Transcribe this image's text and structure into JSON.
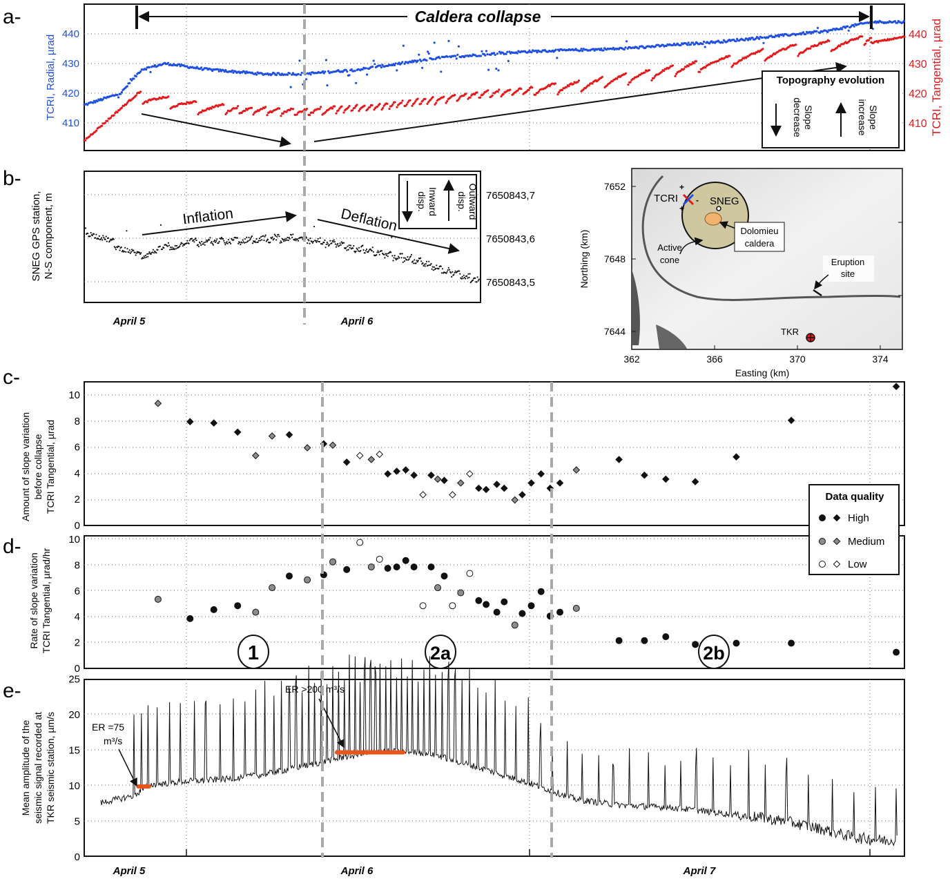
{
  "panel_labels": {
    "a": "a-",
    "b": "b-",
    "c": "c-",
    "d": "d-",
    "e": "e-"
  },
  "colors": {
    "tcri_radial": "#1f4fe0",
    "tcri_tangential": "#e31a1c",
    "black": "#111111",
    "medium_grey": "#8c8c8c",
    "orange": "#e8551a",
    "caldera_fill": "#cfc7a0",
    "dome_fill": "#f0b270",
    "dashed_line": "#a9a9a9"
  },
  "icons": {
    "data_quality_marker_circle": "circle-marker",
    "data_quality_marker_diamond": "diamond-marker",
    "tcri_station": "x-cross-icon",
    "tkr_station": "circled-plus-icon"
  },
  "panel_a": {
    "annotation": "Caldera collapse",
    "ylabel_left": "TCRI, Radial, µrad",
    "ylabel_right": "TCRI, Tangential, µrad",
    "yticks_left": [
      "440",
      "430",
      "420",
      "410"
    ],
    "yticks_right": [
      "440",
      "430",
      "420",
      "410"
    ],
    "legend": {
      "title": "Topography evolution",
      "slope_decrease": "Slope decrease",
      "slope_increase": "Slope increase"
    }
  },
  "panel_b": {
    "ylabel": "SNEG GPS station, N-S component, m",
    "yticks": [
      "7650843,7",
      "7650843,6",
      "7650843,5"
    ],
    "inflation_label": "Inflation",
    "deflation_label": "Deflation",
    "legend_inward": "Inward disp.",
    "legend_outward": "Outward disp.",
    "xticks": [
      "April 5",
      "April 6"
    ]
  },
  "map": {
    "ylabel": "Northing (km)",
    "xlabel": "Easting (km)",
    "yticks": [
      "7652",
      "7648",
      "7644"
    ],
    "xticks": [
      "362",
      "366",
      "370",
      "374"
    ],
    "labels": {
      "tcri": "TCRI",
      "sneg": "SNEG",
      "dolomieu": "Dolomieu caldera",
      "active_cone": "Active cone",
      "eruption_site": "Eruption site",
      "tkr": "TKR"
    }
  },
  "panel_c": {
    "ylabel": "Amount of slope variation before collapse TCRI Tangential, µrad",
    "yticks": [
      "10",
      "8",
      "6",
      "4",
      "2",
      "0"
    ]
  },
  "panel_d": {
    "ylabel": "Rate of slope variation TCRI Tangential, µrad/hr",
    "yticks": [
      "10",
      "8",
      "6",
      "4",
      "2",
      "0"
    ],
    "phases": [
      "1",
      "2a",
      "2b"
    ]
  },
  "legend_quality": {
    "title": "Data quality",
    "high": "High",
    "medium": "Medium",
    "low": "Low"
  },
  "panel_e": {
    "ylabel": "Mean amplitude of the seismic signal recorded at TKR seismic station, µm/s",
    "yticks": [
      "25",
      "20",
      "15",
      "10",
      "5",
      "0"
    ],
    "xticks": [
      "April 5",
      "April 6",
      "April 7"
    ],
    "er1": "ER =75 m³/s",
    "er2": "ER >200 m³/s"
  },
  "chart_data": [
    {
      "type": "scatter",
      "panel": "c",
      "title": "",
      "xlabel": "",
      "ylabel": "Amount of slope variation before collapse TCRI Tangential, µrad",
      "ylim": [
        0,
        11
      ],
      "grid": true,
      "x_unit": "fraction of time axis (April 5 00:00 to April 7 ~16:00)",
      "points": [
        {
          "x": 0.09,
          "y": 9.3,
          "q": "medium"
        },
        {
          "x": 0.129,
          "y": 7.9,
          "q": "high"
        },
        {
          "x": 0.158,
          "y": 7.8,
          "q": "high"
        },
        {
          "x": 0.187,
          "y": 7.1,
          "q": "high"
        },
        {
          "x": 0.209,
          "y": 5.3,
          "q": "medium"
        },
        {
          "x": 0.229,
          "y": 6.8,
          "q": "medium"
        },
        {
          "x": 0.25,
          "y": 6.9,
          "q": "high"
        },
        {
          "x": 0.272,
          "y": 5.9,
          "q": "medium"
        },
        {
          "x": 0.292,
          "y": 6.2,
          "q": "high"
        },
        {
          "x": 0.303,
          "y": 6.1,
          "q": "medium"
        },
        {
          "x": 0.32,
          "y": 4.8,
          "q": "high"
        },
        {
          "x": 0.336,
          "y": 5.3,
          "q": "low"
        },
        {
          "x": 0.35,
          "y": 5.0,
          "q": "medium"
        },
        {
          "x": 0.36,
          "y": 5.4,
          "q": "low"
        },
        {
          "x": 0.37,
          "y": 3.9,
          "q": "high"
        },
        {
          "x": 0.381,
          "y": 4.1,
          "q": "high"
        },
        {
          "x": 0.392,
          "y": 4.2,
          "q": "high"
        },
        {
          "x": 0.402,
          "y": 3.8,
          "q": "high"
        },
        {
          "x": 0.413,
          "y": 2.3,
          "q": "low"
        },
        {
          "x": 0.423,
          "y": 3.8,
          "q": "high"
        },
        {
          "x": 0.431,
          "y": 3.5,
          "q": "medium"
        },
        {
          "x": 0.439,
          "y": 3.4,
          "q": "high"
        },
        {
          "x": 0.449,
          "y": 2.3,
          "q": "low"
        },
        {
          "x": 0.459,
          "y": 3.2,
          "q": "medium"
        },
        {
          "x": 0.47,
          "y": 3.9,
          "q": "low"
        },
        {
          "x": 0.481,
          "y": 2.8,
          "q": "high"
        },
        {
          "x": 0.49,
          "y": 2.7,
          "q": "high"
        },
        {
          "x": 0.503,
          "y": 3.1,
          "q": "high"
        },
        {
          "x": 0.512,
          "y": 2.8,
          "q": "high"
        },
        {
          "x": 0.525,
          "y": 1.9,
          "q": "medium"
        },
        {
          "x": 0.534,
          "y": 2.3,
          "q": "high"
        },
        {
          "x": 0.545,
          "y": 3.2,
          "q": "high"
        },
        {
          "x": 0.557,
          "y": 3.9,
          "q": "high"
        },
        {
          "x": 0.568,
          "y": 2.8,
          "q": "high"
        },
        {
          "x": 0.58,
          "y": 3.2,
          "q": "high"
        },
        {
          "x": 0.6,
          "y": 4.2,
          "q": "medium"
        },
        {
          "x": 0.652,
          "y": 5.0,
          "q": "high"
        },
        {
          "x": 0.683,
          "y": 3.8,
          "q": "high"
        },
        {
          "x": 0.709,
          "y": 3.5,
          "q": "high"
        },
        {
          "x": 0.745,
          "y": 3.3,
          "q": "high"
        },
        {
          "x": 0.795,
          "y": 5.2,
          "q": "high"
        },
        {
          "x": 0.862,
          "y": 8.0,
          "q": "high"
        },
        {
          "x": 0.99,
          "y": 10.6,
          "q": "high"
        }
      ]
    },
    {
      "type": "scatter",
      "panel": "d",
      "title": "",
      "xlabel": "",
      "ylabel": "Rate of slope variation TCRI Tangential, µrad/hr",
      "ylim": [
        0,
        10
      ],
      "grid": true,
      "x_unit": "fraction of time axis (April 5 00:00 to April 7 ~16:00)",
      "points": [
        {
          "x": 0.09,
          "y": 5.3,
          "q": "medium"
        },
        {
          "x": 0.129,
          "y": 3.8,
          "q": "high"
        },
        {
          "x": 0.158,
          "y": 4.5,
          "q": "high"
        },
        {
          "x": 0.187,
          "y": 4.8,
          "q": "high"
        },
        {
          "x": 0.209,
          "y": 4.3,
          "q": "medium"
        },
        {
          "x": 0.229,
          "y": 6.2,
          "q": "medium"
        },
        {
          "x": 0.25,
          "y": 7.1,
          "q": "high"
        },
        {
          "x": 0.272,
          "y": 6.8,
          "q": "medium"
        },
        {
          "x": 0.292,
          "y": 7.2,
          "q": "high"
        },
        {
          "x": 0.303,
          "y": 8.2,
          "q": "medium"
        },
        {
          "x": 0.32,
          "y": 7.6,
          "q": "high"
        },
        {
          "x": 0.336,
          "y": 9.7,
          "q": "low"
        },
        {
          "x": 0.35,
          "y": 7.8,
          "q": "medium"
        },
        {
          "x": 0.36,
          "y": 8.4,
          "q": "low"
        },
        {
          "x": 0.37,
          "y": 7.7,
          "q": "high"
        },
        {
          "x": 0.381,
          "y": 7.8,
          "q": "high"
        },
        {
          "x": 0.392,
          "y": 8.3,
          "q": "high"
        },
        {
          "x": 0.402,
          "y": 7.8,
          "q": "high"
        },
        {
          "x": 0.413,
          "y": 4.8,
          "q": "low"
        },
        {
          "x": 0.423,
          "y": 7.8,
          "q": "high"
        },
        {
          "x": 0.431,
          "y": 6.2,
          "q": "medium"
        },
        {
          "x": 0.439,
          "y": 7.1,
          "q": "high"
        },
        {
          "x": 0.449,
          "y": 4.8,
          "q": "low"
        },
        {
          "x": 0.459,
          "y": 5.8,
          "q": "medium"
        },
        {
          "x": 0.47,
          "y": 7.3,
          "q": "low"
        },
        {
          "x": 0.481,
          "y": 5.2,
          "q": "high"
        },
        {
          "x": 0.49,
          "y": 4.9,
          "q": "high"
        },
        {
          "x": 0.503,
          "y": 4.3,
          "q": "high"
        },
        {
          "x": 0.512,
          "y": 5.1,
          "q": "high"
        },
        {
          "x": 0.525,
          "y": 3.3,
          "q": "medium"
        },
        {
          "x": 0.534,
          "y": 4.2,
          "q": "high"
        },
        {
          "x": 0.545,
          "y": 4.8,
          "q": "high"
        },
        {
          "x": 0.557,
          "y": 5.9,
          "q": "high"
        },
        {
          "x": 0.568,
          "y": 4.0,
          "q": "high"
        },
        {
          "x": 0.58,
          "y": 4.3,
          "q": "high"
        },
        {
          "x": 0.6,
          "y": 4.6,
          "q": "medium"
        },
        {
          "x": 0.652,
          "y": 2.1,
          "q": "high"
        },
        {
          "x": 0.683,
          "y": 2.1,
          "q": "high"
        },
        {
          "x": 0.709,
          "y": 2.4,
          "q": "high"
        },
        {
          "x": 0.745,
          "y": 1.8,
          "q": "high"
        },
        {
          "x": 0.795,
          "y": 1.9,
          "q": "high"
        },
        {
          "x": 0.862,
          "y": 1.9,
          "q": "high"
        },
        {
          "x": 0.99,
          "y": 1.2,
          "q": "high"
        }
      ]
    },
    {
      "type": "line",
      "panel": "e",
      "title": "",
      "xlabel": "",
      "ylabel": "Mean amplitude of the seismic signal recorded at TKR seismic station, µm/s",
      "ylim": [
        0,
        25
      ],
      "grid": true,
      "x_unit": "fraction of time axis (April 5 00:00 to April 7 ~16:00)",
      "baseline": [
        [
          0.02,
          7.5
        ],
        [
          0.06,
          8.5
        ],
        [
          0.08,
          10.0
        ],
        [
          0.12,
          10.5
        ],
        [
          0.17,
          10.8
        ],
        [
          0.22,
          11.5
        ],
        [
          0.28,
          13.0
        ],
        [
          0.32,
          14.0
        ],
        [
          0.36,
          14.8
        ],
        [
          0.42,
          14.5
        ],
        [
          0.48,
          12.5
        ],
        [
          0.55,
          10.0
        ],
        [
          0.6,
          8.0
        ],
        [
          0.65,
          7.2
        ],
        [
          0.72,
          6.8
        ],
        [
          0.78,
          6.0
        ],
        [
          0.82,
          5.5
        ],
        [
          0.86,
          4.8
        ],
        [
          0.9,
          3.8
        ],
        [
          0.94,
          2.6
        ],
        [
          0.98,
          2.2
        ],
        [
          1.0,
          2.5
        ]
      ],
      "spikes_x": [
        0.061,
        0.07,
        0.078,
        0.089,
        0.104,
        0.117,
        0.134,
        0.148,
        0.166,
        0.182,
        0.196,
        0.209,
        0.22,
        0.231,
        0.24,
        0.25,
        0.258,
        0.266,
        0.274,
        0.281,
        0.289,
        0.296,
        0.303,
        0.31,
        0.317,
        0.323,
        0.33,
        0.336,
        0.342,
        0.349,
        0.355,
        0.361,
        0.368,
        0.374,
        0.381,
        0.387,
        0.394,
        0.4,
        0.407,
        0.414,
        0.421,
        0.428,
        0.436,
        0.444,
        0.452,
        0.461,
        0.47,
        0.48,
        0.49,
        0.501,
        0.513,
        0.526,
        0.541,
        0.556,
        0.571,
        0.589,
        0.607,
        0.627,
        0.645,
        0.665,
        0.688,
        0.708,
        0.727,
        0.746,
        0.767,
        0.788,
        0.81,
        0.83,
        0.856,
        0.883,
        0.912,
        0.938,
        0.965,
        0.99
      ],
      "er_segments": [
        {
          "x0": 0.066,
          "x1": 0.079,
          "y": 9.8
        },
        {
          "x0": 0.308,
          "x1": 0.389,
          "y": 14.6
        }
      ]
    }
  ]
}
